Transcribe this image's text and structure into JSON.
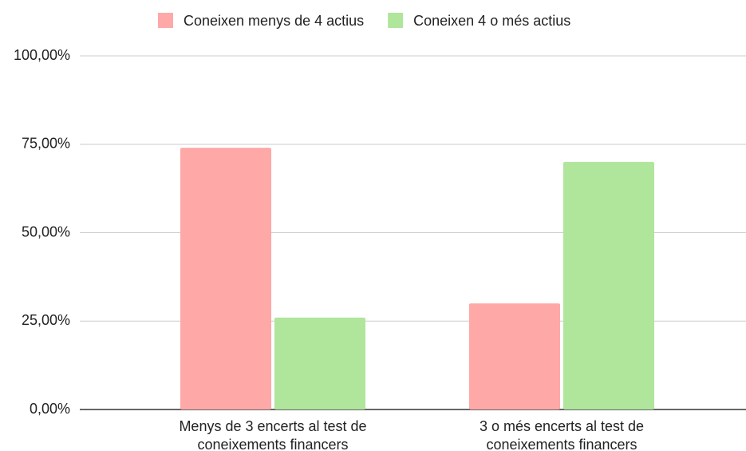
{
  "chart_data": {
    "type": "bar",
    "categories": [
      "Menys de 3 encerts al test de coneixements financers",
      "3 o més encerts al test de coneixements financers"
    ],
    "series": [
      {
        "name": "Coneixen menys de 4 actius",
        "color": "#ffa8a8",
        "values": [
          74,
          30
        ]
      },
      {
        "name": "Coneixen 4 o més actius",
        "color": "#b0e59c",
        "values": [
          26,
          70
        ]
      }
    ],
    "ylim": [
      0,
      100
    ],
    "yticks": [
      {
        "value": 0,
        "label": "0,00%"
      },
      {
        "value": 25,
        "label": "25,00%"
      },
      {
        "value": 50,
        "label": "50,00%"
      },
      {
        "value": 75,
        "label": "75,00%"
      },
      {
        "value": 100,
        "label": "100,00%"
      }
    ],
    "grid": true,
    "legend": "top"
  }
}
